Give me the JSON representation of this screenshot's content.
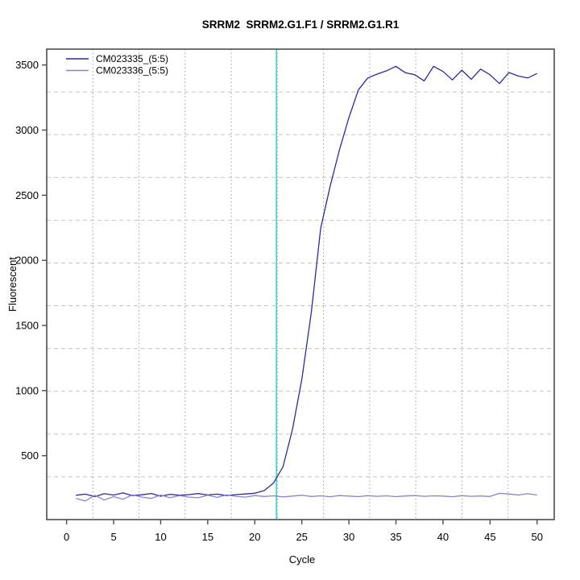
{
  "window": {
    "background": "#ffffff"
  },
  "chart_data": {
    "type": "line",
    "title": "SRRM2  SRRM2.G1.F1 / SRRM2.G1.R1",
    "xlabel": "Cycle",
    "ylabel": "Fluorescent",
    "xticks": [
      0,
      5,
      10,
      15,
      20,
      25,
      30,
      35,
      40,
      45,
      50
    ],
    "yticks": [
      500,
      1000,
      1500,
      2000,
      2500,
      3000,
      3500
    ],
    "xlim": [
      -2.11,
      51.82
    ],
    "ylim": [
      9.5,
      3621.5
    ],
    "grid": {
      "nx": 11,
      "ny": 11,
      "h_style": "dashed",
      "v_style": "dotted"
    },
    "legend_position": "top-left",
    "threshold_cycle": 22.3,
    "x": [
      1,
      2,
      3,
      4,
      5,
      6,
      7,
      8,
      9,
      10,
      11,
      12,
      13,
      14,
      15,
      16,
      17,
      18,
      19,
      20,
      21,
      22,
      23,
      24,
      25,
      26,
      27,
      28,
      29,
      30,
      31,
      32,
      33,
      34,
      35,
      36,
      37,
      38,
      39,
      40,
      41,
      42,
      43,
      44,
      45,
      46,
      47,
      48,
      49,
      50
    ],
    "series": [
      {
        "name": "CM023335_(5:5)",
        "color": "#2B2B99",
        "values": [
          196,
          205,
          186,
          208,
          198,
          214,
          194,
          200,
          210,
          189,
          204,
          196,
          201,
          209,
          199,
          205,
          194,
          201,
          206,
          212,
          232,
          290,
          415,
          700,
          1087,
          1598,
          2247,
          2565,
          2849,
          3095,
          3308,
          3400,
          3430,
          3455,
          3490,
          3440,
          3425,
          3378,
          3490,
          3450,
          3385,
          3460,
          3390,
          3468,
          3425,
          3357,
          3442,
          3415,
          3400,
          3435
        ]
      },
      {
        "name": "CM023336_(5:5)",
        "color": "#8585CC",
        "values": [
          172,
          152,
          196,
          160,
          186,
          166,
          199,
          182,
          172,
          198,
          177,
          194,
          182,
          177,
          196,
          180,
          199,
          188,
          182,
          194,
          187,
          192,
          184,
          190,
          196,
          187,
          192,
          185,
          194,
          190,
          186,
          193,
          188,
          192,
          186,
          191,
          194,
          188,
          192,
          190,
          185,
          193,
          188,
          191,
          187,
          211,
          206,
          198,
          208,
          198
        ]
      }
    ]
  },
  "colors": {
    "threshold_line": "#22DFDF",
    "grid_h": "#C2C2C2",
    "grid_v": "#9E9E9E",
    "plot_border": "#4D4D4D",
    "text": "#000000"
  }
}
